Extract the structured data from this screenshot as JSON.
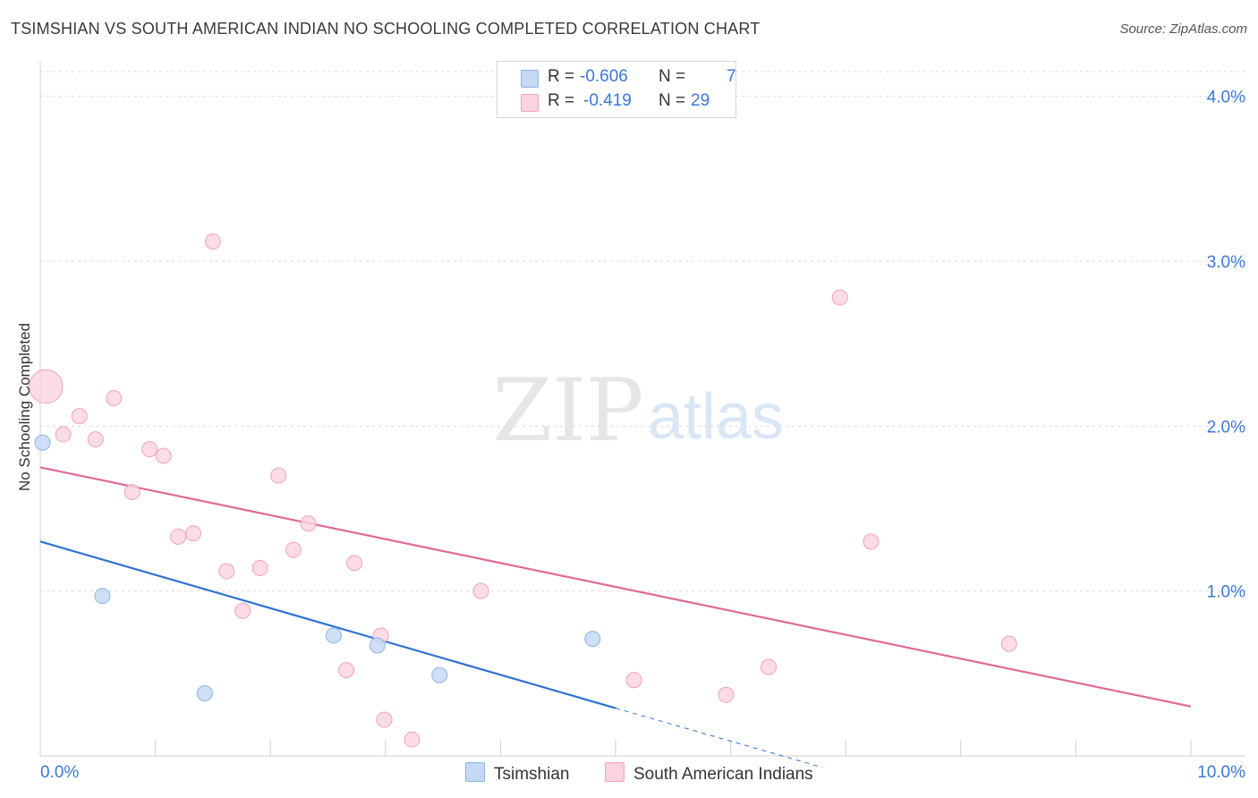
{
  "title": "TSIMSHIAN VS SOUTH AMERICAN INDIAN NO SCHOOLING COMPLETED CORRELATION CHART",
  "source": "Source: ZipAtlas.com",
  "watermark": {
    "zip": "ZIP",
    "atlas": "atlas"
  },
  "legend_top": {
    "rows": [
      {
        "r_label": "R =",
        "r_value": "-0.606",
        "n_label": "N =",
        "n_value": "7"
      },
      {
        "r_label": "R =",
        "r_value": "-0.419",
        "n_label": "N =",
        "n_value": "29"
      }
    ]
  },
  "colors": {
    "tsimshian_fill": "#c5d9f5",
    "tsimshian_stroke": "#8eb3e6",
    "tsimshian_line": "#2f72d4",
    "sai_fill": "#fbd3de",
    "sai_stroke": "#f0a3b9",
    "sai_line": "#e06a93",
    "axis_text": "#3b78d8",
    "grid": "#d9d9d9"
  },
  "chart_data": {
    "type": "scatter",
    "title": "TSIMSHIAN VS SOUTH AMERICAN INDIAN NO SCHOOLING COMPLETED CORRELATION CHART",
    "xlabel": "",
    "ylabel": "No Schooling Completed",
    "xlim": [
      0,
      10
    ],
    "ylim": [
      0,
      4.15
    ],
    "x_tick_labels": [
      "0.0%",
      "10.0%"
    ],
    "y_ticks": [
      1,
      2,
      3,
      4
    ],
    "y_tick_labels": [
      "1.0%",
      "2.0%",
      "3.0%",
      "4.0%"
    ],
    "grid": true,
    "legend": "bottom-center",
    "series": [
      {
        "name": "Tsimshian",
        "r": -0.606,
        "n": 7,
        "points": [
          {
            "x": 0.02,
            "y": 1.9,
            "size": 1
          },
          {
            "x": 0.54,
            "y": 0.97,
            "size": 1
          },
          {
            "x": 1.43,
            "y": 0.38,
            "size": 1
          },
          {
            "x": 2.55,
            "y": 0.73,
            "size": 1
          },
          {
            "x": 2.93,
            "y": 0.67,
            "size": 1
          },
          {
            "x": 3.47,
            "y": 0.49,
            "size": 1
          },
          {
            "x": 4.8,
            "y": 0.71,
            "size": 1
          }
        ],
        "trend": {
          "x0": 0,
          "y0": 1.3,
          "x1": 5.0,
          "y1": 0.29,
          "dashed_to_x": 6.8,
          "dashed_to_y": -0.07
        }
      },
      {
        "name": "South American Indians",
        "r": -0.419,
        "n": 29,
        "points": [
          {
            "x": 0.05,
            "y": 2.24,
            "size": 2.2
          },
          {
            "x": 0.2,
            "y": 1.95,
            "size": 1
          },
          {
            "x": 0.34,
            "y": 2.06,
            "size": 1
          },
          {
            "x": 0.48,
            "y": 1.92,
            "size": 1
          },
          {
            "x": 0.64,
            "y": 2.17,
            "size": 1
          },
          {
            "x": 0.8,
            "y": 1.6,
            "size": 1
          },
          {
            "x": 0.95,
            "y": 1.86,
            "size": 1
          },
          {
            "x": 1.07,
            "y": 1.82,
            "size": 1
          },
          {
            "x": 1.2,
            "y": 1.33,
            "size": 1
          },
          {
            "x": 1.33,
            "y": 1.35,
            "size": 1
          },
          {
            "x": 1.5,
            "y": 3.12,
            "size": 1
          },
          {
            "x": 1.62,
            "y": 1.12,
            "size": 1
          },
          {
            "x": 1.76,
            "y": 0.88,
            "size": 1
          },
          {
            "x": 1.91,
            "y": 1.14,
            "size": 1
          },
          {
            "x": 2.07,
            "y": 1.7,
            "size": 1
          },
          {
            "x": 2.2,
            "y": 1.25,
            "size": 1
          },
          {
            "x": 2.33,
            "y": 1.41,
            "size": 1
          },
          {
            "x": 2.66,
            "y": 0.52,
            "size": 1
          },
          {
            "x": 2.73,
            "y": 1.17,
            "size": 1
          },
          {
            "x": 2.96,
            "y": 0.73,
            "size": 1
          },
          {
            "x": 2.99,
            "y": 0.22,
            "size": 1
          },
          {
            "x": 3.23,
            "y": 0.1,
            "size": 1
          },
          {
            "x": 3.83,
            "y": 1.0,
            "size": 1
          },
          {
            "x": 5.16,
            "y": 0.46,
            "size": 1
          },
          {
            "x": 5.96,
            "y": 0.37,
            "size": 1
          },
          {
            "x": 6.33,
            "y": 0.54,
            "size": 1
          },
          {
            "x": 6.95,
            "y": 2.78,
            "size": 1
          },
          {
            "x": 7.22,
            "y": 1.3,
            "size": 1
          },
          {
            "x": 8.42,
            "y": 0.68,
            "size": 1
          }
        ],
        "trend": {
          "x0": 0,
          "y0": 1.75,
          "x1": 10,
          "y1": 0.3
        }
      }
    ]
  },
  "bottom_legend": {
    "items": [
      "Tsimshian",
      "South American Indians"
    ]
  }
}
